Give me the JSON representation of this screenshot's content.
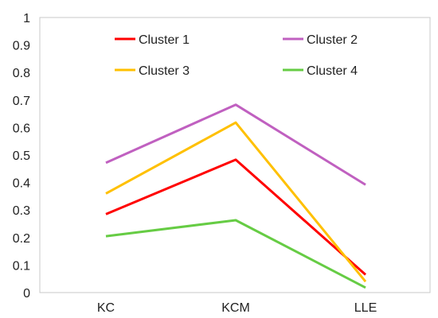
{
  "chart_data": {
    "type": "line",
    "categories": [
      "KC",
      "KCM",
      "LLE"
    ],
    "series": [
      {
        "name": "Cluster 1",
        "values": [
          0.285,
          0.483,
          0.065
        ],
        "color": "#ff0000"
      },
      {
        "name": "Cluster 2",
        "values": [
          0.472,
          0.683,
          0.392
        ],
        "color": "#c060c0"
      },
      {
        "name": "Cluster 3",
        "values": [
          0.36,
          0.618,
          0.04
        ],
        "color": "#ffc000"
      },
      {
        "name": "Cluster 4",
        "values": [
          0.205,
          0.263,
          0.018
        ],
        "color": "#66cc44"
      }
    ],
    "ylim": [
      0,
      1
    ],
    "yticks": [
      "0",
      "0.1",
      "0.2",
      "0.3",
      "0.4",
      "0.5",
      "0.6",
      "0.7",
      "0.8",
      "0.9",
      "1"
    ],
    "grid": false,
    "legend_position": "top",
    "title": "",
    "xlabel": "",
    "ylabel": ""
  }
}
